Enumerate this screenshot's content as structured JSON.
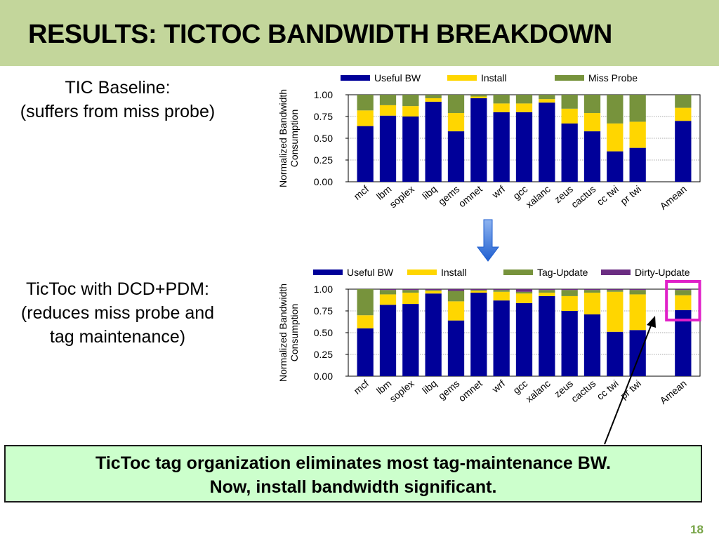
{
  "header": {
    "title": "RESULTS: TICTOC BANDWIDTH BREAKDOWN"
  },
  "left_texts": {
    "top_line1": "TIC Baseline:",
    "top_line2": "(suffers from miss probe)",
    "bottom_line1": "TicToc with DCD+PDM:",
    "bottom_line2": "(reduces miss probe and",
    "bottom_line3": "tag maintenance)"
  },
  "callout": {
    "line1": "TicToc tag organization eliminates most tag-maintenance BW.",
    "line2": "Now, install bandwidth significant."
  },
  "slide_number": "18",
  "colors": {
    "useful": "#000099",
    "install": "#ffd600",
    "miss_probe": "#77933c",
    "tag_update": "#77933c",
    "dirty_update": "#6b2d82",
    "highlight": "#e020c8",
    "arrow": "#1f5fd0"
  },
  "chart_data": [
    {
      "type": "bar",
      "stacked": true,
      "title": "",
      "xlabel": "",
      "ylabel": "Normalized Bandwidth Consumption",
      "ylim": [
        0,
        1
      ],
      "yticks": [
        "0.00",
        "0.25",
        "0.50",
        "0.75",
        "1.00"
      ],
      "categories": [
        "mcf",
        "lbm",
        "soplex",
        "libq",
        "gems",
        "omnet",
        "wrf",
        "gcc",
        "xalanc",
        "zeus",
        "cactus",
        "cc twi",
        "pr twi",
        "Amean"
      ],
      "series": [
        {
          "name": "Useful BW",
          "values": [
            0.64,
            0.76,
            0.75,
            0.92,
            0.58,
            0.96,
            0.8,
            0.8,
            0.91,
            0.67,
            0.58,
            0.35,
            0.39,
            0.7
          ]
        },
        {
          "name": "Install",
          "values": [
            0.18,
            0.12,
            0.12,
            0.04,
            0.21,
            0.02,
            0.1,
            0.1,
            0.04,
            0.17,
            0.21,
            0.32,
            0.3,
            0.15
          ]
        },
        {
          "name": "Miss Probe",
          "values": [
            0.18,
            0.12,
            0.13,
            0.04,
            0.21,
            0.02,
            0.1,
            0.1,
            0.05,
            0.16,
            0.21,
            0.33,
            0.31,
            0.15
          ]
        }
      ],
      "legend_position": "top",
      "grid": true
    },
    {
      "type": "bar",
      "stacked": true,
      "title": "",
      "xlabel": "",
      "ylabel": "Normalized Bandwidth Consumption",
      "ylim": [
        0,
        1
      ],
      "yticks": [
        "0.00",
        "0.25",
        "0.50",
        "0.75",
        "1.00"
      ],
      "categories": [
        "mcf",
        "lbm",
        "soplex",
        "libq",
        "gems",
        "omnet",
        "wrf",
        "gcc",
        "xalanc",
        "zeus",
        "cactus",
        "cc twi",
        "pr twi",
        "Amean"
      ],
      "series": [
        {
          "name": "Useful BW",
          "values": [
            0.55,
            0.82,
            0.83,
            0.95,
            0.64,
            0.96,
            0.87,
            0.84,
            0.92,
            0.75,
            0.71,
            0.51,
            0.53,
            0.76
          ]
        },
        {
          "name": "Install",
          "values": [
            0.15,
            0.12,
            0.13,
            0.03,
            0.22,
            0.02,
            0.1,
            0.11,
            0.04,
            0.17,
            0.25,
            0.46,
            0.41,
            0.17
          ]
        },
        {
          "name": "Tag-Update",
          "values": [
            0.3,
            0.05,
            0.03,
            0.01,
            0.12,
            0.01,
            0.02,
            0.02,
            0.03,
            0.07,
            0.03,
            0.02,
            0.05,
            0.06
          ]
        },
        {
          "name": "Dirty-Update",
          "values": [
            0.0,
            0.01,
            0.01,
            0.01,
            0.02,
            0.01,
            0.01,
            0.03,
            0.01,
            0.01,
            0.01,
            0.01,
            0.01,
            0.01
          ]
        }
      ],
      "legend_position": "top",
      "grid": true,
      "highlight_category": "Amean"
    }
  ]
}
